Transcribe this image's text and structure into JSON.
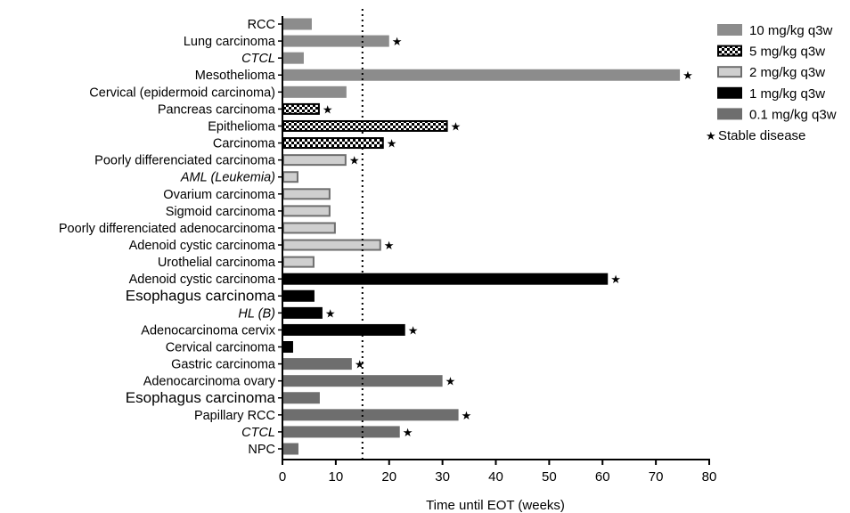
{
  "chart_data": {
    "type": "bar",
    "orientation": "horizontal",
    "xlabel": "Time until EOT (weeks)",
    "xlim": [
      0,
      80
    ],
    "xticks": [
      "0",
      "10",
      "20",
      "30",
      "40",
      "50",
      "60",
      "70",
      "80"
    ],
    "reference_line": {
      "x": 15,
      "style": "dotted"
    },
    "legend_position": "top-right",
    "series": [
      {
        "name": "10 mg/kg q3w",
        "color": "#8c8c8c",
        "pattern": "solid"
      },
      {
        "name": "5 mg/kg q3w",
        "color": "#000000",
        "pattern": "checker"
      },
      {
        "name": "2 mg/kg q3w",
        "color": "#cfcfcf",
        "pattern": "outlined"
      },
      {
        "name": "1 mg/kg q3w",
        "color": "#000000",
        "pattern": "solid"
      },
      {
        "name": "0.1 mg/kg q3w",
        "color": "#6e6e6e",
        "pattern": "solid"
      }
    ],
    "marker_legend": {
      "symbol": "★",
      "label": "Stable disease"
    },
    "categories": [
      {
        "label": "RCC",
        "value": 5.5,
        "series": 0,
        "stable": false,
        "italic": false,
        "large": false
      },
      {
        "label": "Lung carcinoma",
        "value": 20,
        "series": 0,
        "stable": true,
        "italic": false,
        "large": false
      },
      {
        "label": "CTCL",
        "value": 4,
        "series": 0,
        "stable": false,
        "italic": true,
        "large": false
      },
      {
        "label": "Mesothelioma",
        "value": 74.5,
        "series": 0,
        "stable": true,
        "italic": false,
        "large": false
      },
      {
        "label": "Cervical (epidermoid carcinoma)",
        "value": 12,
        "series": 0,
        "stable": false,
        "italic": false,
        "large": false
      },
      {
        "label": "Pancreas carcinoma",
        "value": 7,
        "series": 1,
        "stable": true,
        "italic": false,
        "large": false
      },
      {
        "label": "Epithelioma",
        "value": 31,
        "series": 1,
        "stable": true,
        "italic": false,
        "large": false
      },
      {
        "label": "Carcinoma",
        "value": 19,
        "series": 1,
        "stable": true,
        "italic": false,
        "large": false
      },
      {
        "label": "Poorly differenciated carcinoma",
        "value": 12,
        "series": 2,
        "stable": true,
        "italic": false,
        "large": false
      },
      {
        "label": "AML (Leukemia)",
        "value": 3,
        "series": 2,
        "stable": false,
        "italic": true,
        "large": false
      },
      {
        "label": "Ovarium carcinoma",
        "value": 9,
        "series": 2,
        "stable": false,
        "italic": false,
        "large": false
      },
      {
        "label": "Sigmoid carcinoma",
        "value": 9,
        "series": 2,
        "stable": false,
        "italic": false,
        "large": false
      },
      {
        "label": "Poorly differenciated adenocarcinoma",
        "value": 10,
        "series": 2,
        "stable": false,
        "italic": false,
        "large": false
      },
      {
        "label": "Adenoid cystic carcinoma",
        "value": 18.5,
        "series": 2,
        "stable": true,
        "italic": false,
        "large": false
      },
      {
        "label": "Urothelial carcinoma",
        "value": 6,
        "series": 2,
        "stable": false,
        "italic": false,
        "large": false
      },
      {
        "label": "Adenoid cystic carcinoma",
        "value": 61,
        "series": 3,
        "stable": true,
        "italic": false,
        "large": false
      },
      {
        "label": "Esophagus carcinoma",
        "value": 6,
        "series": 3,
        "stable": false,
        "italic": false,
        "large": true
      },
      {
        "label": "HL (B)",
        "value": 7.5,
        "series": 3,
        "stable": true,
        "italic": true,
        "large": false
      },
      {
        "label": "Adenocarcinoma cervix",
        "value": 23,
        "series": 3,
        "stable": true,
        "italic": false,
        "large": false
      },
      {
        "label": "Cervical carcinoma",
        "value": 2,
        "series": 3,
        "stable": false,
        "italic": false,
        "large": false
      },
      {
        "label": "Gastric carcinoma",
        "value": 13,
        "series": 4,
        "stable": true,
        "italic": false,
        "large": false
      },
      {
        "label": "Adenocarcinoma ovary",
        "value": 30,
        "series": 4,
        "stable": true,
        "italic": false,
        "large": false
      },
      {
        "label": "Esophagus carcinoma",
        "value": 7,
        "series": 4,
        "stable": false,
        "italic": false,
        "large": true
      },
      {
        "label": "Papillary RCC",
        "value": 33,
        "series": 4,
        "stable": true,
        "italic": false,
        "large": false
      },
      {
        "label": "CTCL",
        "value": 22,
        "series": 4,
        "stable": true,
        "italic": true,
        "large": false
      },
      {
        "label": "NPC",
        "value": 3,
        "series": 4,
        "stable": false,
        "italic": false,
        "large": false
      }
    ]
  }
}
